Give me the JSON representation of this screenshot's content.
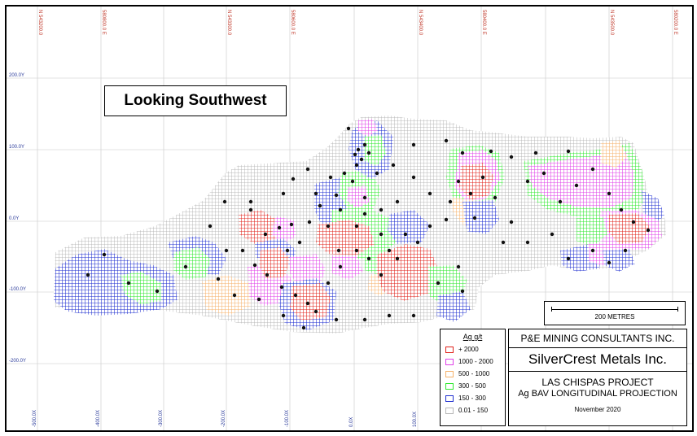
{
  "view_label": "Looking Southwest",
  "northing_labels": [
    "N 543200.0",
    "580800.0 E",
    "N 543300.0",
    "580600.0 E",
    "N 543400.0",
    "580400.0 E",
    "N 543500.0",
    "580200.0 E"
  ],
  "elevation_labels": [
    "200.0Y",
    "100.0Y",
    "0.0Y",
    "-100.0Y",
    "-200.0Y"
  ],
  "easting_labels": [
    "-500.0X",
    "-400.0X",
    "-300.0X",
    "-200.0X",
    "-100.0X",
    "0.0X",
    "100.0X"
  ],
  "scale": {
    "label": "200 METRES"
  },
  "legend": {
    "title": "Ag g/t",
    "items": [
      {
        "label": "+ 2000",
        "color": "#e0231c"
      },
      {
        "label": "1000 - 2000",
        "color": "#e040e8"
      },
      {
        "label": "500 - 1000",
        "color": "#f5b26b"
      },
      {
        "label": "300 - 500",
        "color": "#2ee82e"
      },
      {
        "label": "150 - 300",
        "color": "#1f2fd0"
      },
      {
        "label": "0.01 - 150",
        "color": "#b8b8b8"
      }
    ]
  },
  "title_block": {
    "consultant": "P&E MINING CONSULTANTS INC.",
    "company": "SilverCrest Metals Inc.",
    "project": "LAS CHISPAS PROJECT",
    "subtitle": "Ag BAV LONGITUDINAL PROJECTION",
    "date": "November 2020"
  }
}
